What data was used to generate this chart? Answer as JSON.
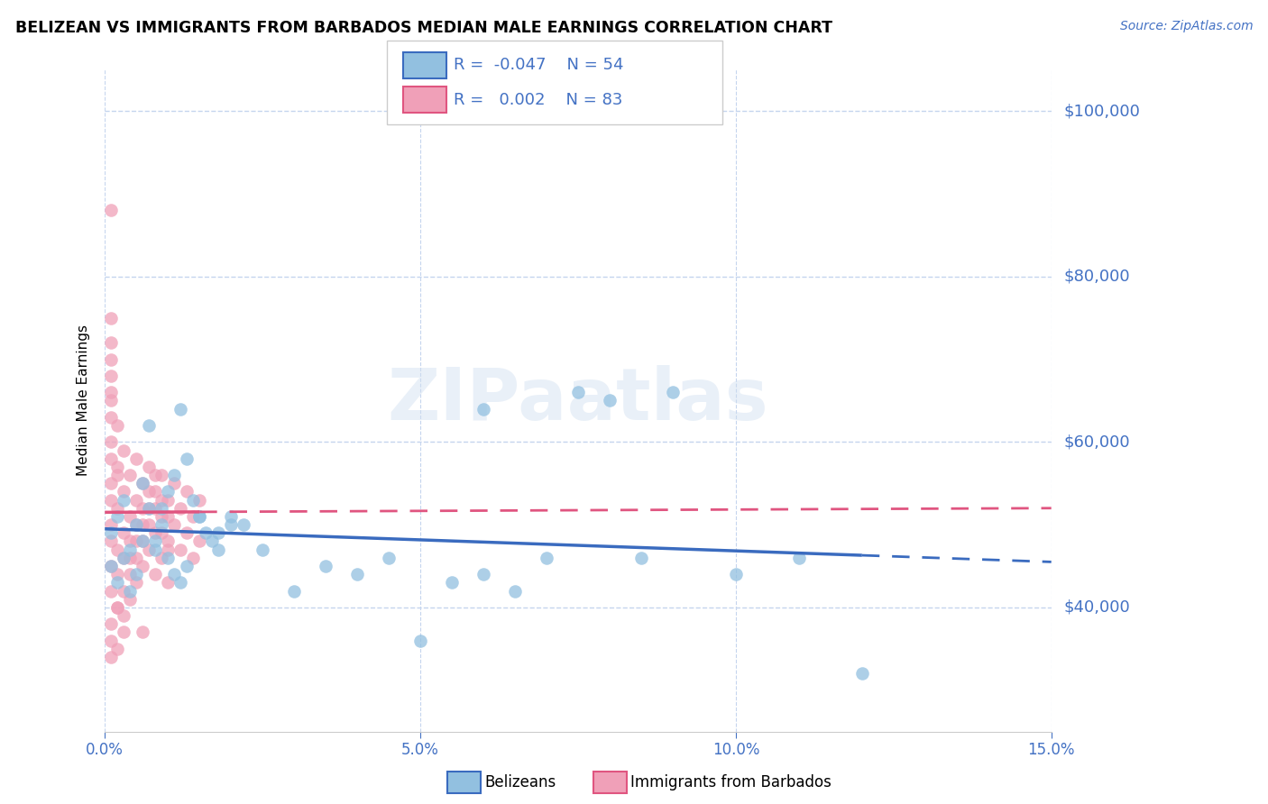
{
  "title": "BELIZEAN VS IMMIGRANTS FROM BARBADOS MEDIAN MALE EARNINGS CORRELATION CHART",
  "source": "Source: ZipAtlas.com",
  "ylabel": "Median Male Earnings",
  "xlim": [
    0.0,
    0.15
  ],
  "ylim": [
    25000,
    105000
  ],
  "yticks": [
    40000,
    60000,
    80000,
    100000
  ],
  "xticks": [
    0.0,
    0.05,
    0.1,
    0.15
  ],
  "xtick_labels": [
    "0.0%",
    "5.0%",
    "10.0%",
    "15.0%"
  ],
  "ytick_labels": [
    "$40,000",
    "$60,000",
    "$80,000",
    "$100,000"
  ],
  "blue_color": "#92c0e0",
  "pink_color": "#f0a0b8",
  "blue_line_color": "#3a6bbf",
  "pink_line_color": "#e05580",
  "axis_color": "#4472c4",
  "grid_color": "#c5d5ee",
  "legend_R_blue": "-0.047",
  "legend_N_blue": "54",
  "legend_R_pink": "0.002",
  "legend_N_pink": "83",
  "watermark": "ZIPaatlas",
  "blue_scatter_x": [
    0.001,
    0.002,
    0.003,
    0.004,
    0.005,
    0.006,
    0.007,
    0.008,
    0.009,
    0.01,
    0.011,
    0.012,
    0.013,
    0.014,
    0.015,
    0.016,
    0.017,
    0.018,
    0.02,
    0.022,
    0.001,
    0.002,
    0.003,
    0.004,
    0.005,
    0.006,
    0.007,
    0.008,
    0.009,
    0.01,
    0.011,
    0.012,
    0.013,
    0.015,
    0.018,
    0.02,
    0.025,
    0.03,
    0.035,
    0.04,
    0.045,
    0.05,
    0.055,
    0.06,
    0.065,
    0.07,
    0.08,
    0.09,
    0.1,
    0.11,
    0.06,
    0.075,
    0.085,
    0.12
  ],
  "blue_scatter_y": [
    49000,
    51000,
    53000,
    47000,
    50000,
    55000,
    62000,
    48000,
    52000,
    54000,
    56000,
    64000,
    58000,
    53000,
    51000,
    49000,
    48000,
    47000,
    51000,
    50000,
    45000,
    43000,
    46000,
    42000,
    44000,
    48000,
    52000,
    47000,
    50000,
    46000,
    44000,
    43000,
    45000,
    51000,
    49000,
    50000,
    47000,
    42000,
    45000,
    44000,
    46000,
    36000,
    43000,
    44000,
    42000,
    46000,
    65000,
    66000,
    44000,
    46000,
    64000,
    66000,
    46000,
    32000
  ],
  "pink_scatter_x": [
    0.001,
    0.001,
    0.001,
    0.002,
    0.002,
    0.002,
    0.003,
    0.003,
    0.003,
    0.004,
    0.004,
    0.004,
    0.005,
    0.005,
    0.005,
    0.006,
    0.006,
    0.006,
    0.007,
    0.007,
    0.007,
    0.008,
    0.008,
    0.008,
    0.009,
    0.009,
    0.009,
    0.01,
    0.01,
    0.01,
    0.011,
    0.011,
    0.012,
    0.012,
    0.013,
    0.013,
    0.014,
    0.014,
    0.015,
    0.015,
    0.001,
    0.001,
    0.002,
    0.002,
    0.003,
    0.003,
    0.004,
    0.004,
    0.005,
    0.005,
    0.006,
    0.006,
    0.007,
    0.007,
    0.008,
    0.008,
    0.009,
    0.009,
    0.01,
    0.01,
    0.001,
    0.002,
    0.003,
    0.001,
    0.002,
    0.003,
    0.004,
    0.005,
    0.006,
    0.001,
    0.001,
    0.002,
    0.001,
    0.001,
    0.002,
    0.001,
    0.001,
    0.001,
    0.001,
    0.001,
    0.001,
    0.001,
    0.001
  ],
  "pink_scatter_y": [
    55000,
    50000,
    45000,
    57000,
    52000,
    47000,
    59000,
    54000,
    49000,
    56000,
    51000,
    46000,
    58000,
    53000,
    48000,
    55000,
    50000,
    45000,
    57000,
    52000,
    47000,
    54000,
    49000,
    44000,
    56000,
    51000,
    46000,
    53000,
    48000,
    43000,
    55000,
    50000,
    52000,
    47000,
    54000,
    49000,
    51000,
    46000,
    53000,
    48000,
    42000,
    38000,
    44000,
    40000,
    46000,
    42000,
    48000,
    44000,
    50000,
    46000,
    52000,
    48000,
    54000,
    50000,
    56000,
    52000,
    53000,
    49000,
    51000,
    47000,
    88000,
    40000,
    37000,
    36000,
    35000,
    39000,
    41000,
    43000,
    37000,
    34000,
    60000,
    56000,
    65000,
    68000,
    62000,
    72000,
    75000,
    58000,
    53000,
    48000,
    63000,
    66000,
    70000
  ]
}
